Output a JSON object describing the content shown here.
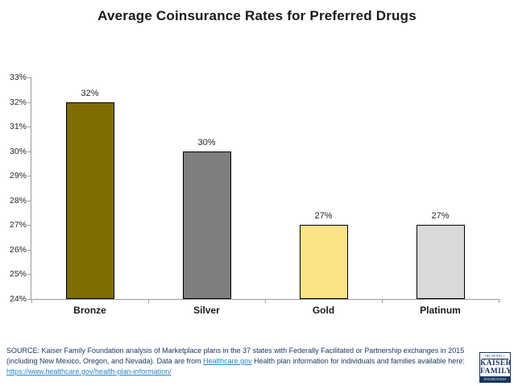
{
  "chart_data": {
    "type": "bar",
    "title": "Average Coinsurance Rates for Preferred Drugs",
    "categories": [
      "Bronze",
      "Silver",
      "Gold",
      "Platinum"
    ],
    "values": [
      32,
      30,
      27,
      27
    ],
    "value_labels": [
      "32%",
      "30%",
      "27%",
      "27%"
    ],
    "y_tick_values": [
      24,
      25,
      26,
      27,
      28,
      29,
      30,
      31,
      32,
      33
    ],
    "y_tick_labels": [
      "24%",
      "25%",
      "26%",
      "27%",
      "28%",
      "29%",
      "30%",
      "31%",
      "32%",
      "33%"
    ],
    "ylim": [
      24,
      33
    ],
    "xlabel": "",
    "ylabel": "",
    "grid": false,
    "legend": "none",
    "bar_colors": [
      "#7F6D00",
      "#7F7F7F",
      "#FCE388",
      "#D9D9D9"
    ],
    "bar_border_color": "#000000",
    "axis_color": "#999999"
  },
  "source": {
    "text1": "SOURCE: Kaiser Family Foundation analysis of Marketplace plans in the 37 states with Federally Facilitated or Partnership exchanges in 2015 (including New Mexico, Oregon, and Nevada). Data are from ",
    "link1": "Healthcare.gov",
    "text2": " Health plan information for individuals and families available here: ",
    "link2": "https://www.healthcare.gov/health-plan-information/",
    "text_color": "#17365D",
    "link_color": "#2584C6"
  },
  "logo": {
    "line1": "THE HENRY J.",
    "line2": "KAISER",
    "line3": "FAMILY",
    "line4": "FOUNDATION",
    "color": "#17365D"
  }
}
